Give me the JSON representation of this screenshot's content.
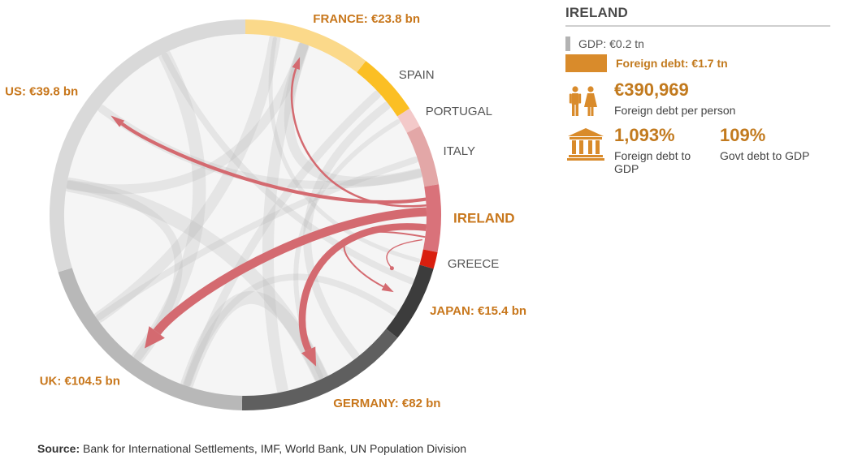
{
  "focus_country": "IRELAND",
  "colors": {
    "gray_light": "#d9d9d9",
    "gray_mid": "#b8b8b8",
    "gray_dark": "#5f5f5f",
    "gray_darker": "#3c3c3c",
    "yellow_light": "#fbd98a",
    "yellow": "#fbbf24",
    "pink_light": "#f3c9c9",
    "pink": "#e3a7a7",
    "ireland": "#d9727a",
    "greece": "#d91f0f",
    "label_orange": "#c8771c",
    "label_gray": "#555555",
    "flow": "#d46a70",
    "ghost_flow": "#bbbbbb"
  },
  "panel": {
    "title": "IRELAND",
    "gdp_label": "GDP: €0.2 tn",
    "foreign_debt_label": "Foreign debt: €1.7 tn",
    "per_person_value": "€390,969",
    "per_person_label": "Foreign debt per person",
    "debt_to_gdp_value": "1,093%",
    "debt_to_gdp_label": "Foreign debt to GDP",
    "govt_debt_value": "109%",
    "govt_debt_label": "Govt debt to GDP"
  },
  "source": {
    "prefix": "Source:",
    "text": " Bank for International Settlements, IMF, World Bank, UN Population Division"
  },
  "chart_data": {
    "type": "chord",
    "title": "",
    "focus": "Ireland",
    "unit": "€ bn",
    "ring": [
      {
        "name": "FRANCE",
        "label": "FRANCE: €23.8 bn",
        "start_deg": 0,
        "end_deg": 38,
        "color": "#fbd98a",
        "label_color": "#c8771c",
        "label_bold": true
      },
      {
        "name": "SPAIN",
        "label": "SPAIN",
        "start_deg": 38,
        "end_deg": 57,
        "color": "#fbbf24",
        "label_color": "#555555",
        "label_bold": false
      },
      {
        "name": "PORTUGAL",
        "label": "PORTUGAL",
        "start_deg": 57,
        "end_deg": 63,
        "color": "#f3c9c9",
        "label_color": "#555555",
        "label_bold": false
      },
      {
        "name": "ITALY",
        "label": "ITALY",
        "start_deg": 63,
        "end_deg": 81,
        "color": "#e3a7a7",
        "label_color": "#555555",
        "label_bold": false
      },
      {
        "name": "IRELAND",
        "label": "IRELAND",
        "start_deg": 81,
        "end_deg": 101,
        "color": "#d9727a",
        "label_color": "#c8771c",
        "label_bold": true
      },
      {
        "name": "GREECE",
        "label": "GREECE",
        "start_deg": 101,
        "end_deg": 106,
        "color": "#d91f0f",
        "label_color": "#555555",
        "label_bold": false
      },
      {
        "name": "JAPAN",
        "label": "JAPAN: €15.4 bn",
        "start_deg": 106,
        "end_deg": 129,
        "color": "#3c3c3c",
        "label_color": "#c8771c",
        "label_bold": true
      },
      {
        "name": "GERMANY",
        "label": "GERMANY: €82 bn",
        "start_deg": 129,
        "end_deg": 181,
        "color": "#5f5f5f",
        "label_color": "#c8771c",
        "label_bold": true
      },
      {
        "name": "UK",
        "label": "UK: €104.5 bn",
        "start_deg": 181,
        "end_deg": 253,
        "color": "#b8b8b8",
        "label_color": "#c8771c",
        "label_bold": true
      },
      {
        "name": "US",
        "label": "US: €39.8 bn",
        "start_deg": 253,
        "end_deg": 360,
        "color": "#d9d9d9",
        "label_color": "#c8771c",
        "label_bold": true
      }
    ],
    "flows_from_ireland": [
      {
        "to": "UK",
        "value": 104.5
      },
      {
        "to": "GERMANY",
        "value": 82
      },
      {
        "to": "US",
        "value": 39.8
      },
      {
        "to": "FRANCE",
        "value": 23.8
      },
      {
        "to": "JAPAN",
        "value": 15.4
      }
    ]
  }
}
